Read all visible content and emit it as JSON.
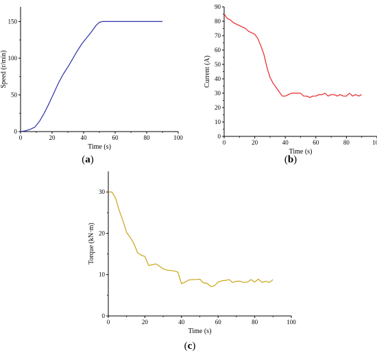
{
  "chart_data": [
    {
      "type": "line",
      "panel": "a",
      "panel_label": "a",
      "xlabel": "Time (s)",
      "ylabel": "Speed (r/min)",
      "xlim": [
        0,
        100
      ],
      "ylim": [
        0,
        170
      ],
      "xticks": [
        0,
        20,
        40,
        60,
        80,
        100
      ],
      "yticks": [
        0,
        50,
        100,
        150
      ],
      "grid": false,
      "color": "#2b2fa8",
      "x": [
        0,
        3,
        6,
        9,
        12,
        15,
        18,
        21,
        24,
        27,
        30,
        33,
        36,
        39,
        42,
        45,
        48,
        50,
        52,
        54,
        56,
        60,
        70,
        80,
        90
      ],
      "y": [
        0,
        1,
        3,
        6,
        14,
        25,
        38,
        52,
        66,
        78,
        88,
        99,
        110,
        120,
        128,
        136,
        145,
        149,
        150,
        150,
        150,
        150,
        150,
        150,
        150
      ]
    },
    {
      "type": "line",
      "panel": "b",
      "panel_label": "b",
      "xlabel": "Time (s)",
      "ylabel": "Current (A)",
      "xlim": [
        0,
        100
      ],
      "ylim": [
        0,
        90
      ],
      "xticks": [
        0,
        20,
        40,
        60,
        80,
        100
      ],
      "yticks": [
        0,
        10,
        20,
        30,
        40,
        50,
        60,
        70,
        80,
        90
      ],
      "grid": false,
      "color": "#e8252a",
      "x": [
        0,
        2,
        4,
        6,
        8,
        10,
        12,
        14,
        16,
        18,
        20,
        22,
        24,
        26,
        28,
        30,
        32,
        34,
        36,
        38,
        40,
        42,
        44,
        46,
        48,
        50,
        52,
        54,
        56,
        58,
        60,
        62,
        64,
        66,
        68,
        70,
        72,
        74,
        76,
        78,
        80,
        82,
        84,
        86,
        88,
        90
      ],
      "y": [
        85,
        82,
        81,
        79,
        78,
        77,
        76,
        75,
        73,
        72,
        71,
        68,
        63,
        57,
        48,
        41,
        37,
        34,
        31,
        28,
        28,
        29,
        30,
        30,
        30,
        30,
        28,
        28,
        27,
        28,
        28,
        29,
        29,
        30,
        28,
        29,
        29,
        28,
        29,
        28,
        28,
        30,
        28,
        29,
        28,
        29
      ]
    },
    {
      "type": "line",
      "panel": "c",
      "panel_label": "c",
      "xlabel": "Time (s)",
      "ylabel": "Torque (kN·m)",
      "xlim": [
        0,
        100
      ],
      "ylim": [
        0,
        35
      ],
      "xticks": [
        0,
        20,
        40,
        60,
        80,
        100
      ],
      "yticks": [
        0,
        10,
        20,
        30
      ],
      "grid": false,
      "color": "#c8a317",
      "x": [
        0,
        2,
        4,
        6,
        8,
        10,
        12,
        14,
        16,
        18,
        20,
        22,
        24,
        26,
        28,
        30,
        32,
        34,
        36,
        38,
        40,
        42,
        44,
        46,
        48,
        50,
        52,
        54,
        56,
        58,
        60,
        62,
        64,
        66,
        68,
        70,
        72,
        74,
        76,
        78,
        80,
        82,
        84,
        86,
        88,
        90
      ],
      "y": [
        30,
        30,
        28.5,
        25.5,
        23,
        20.2,
        19,
        17.5,
        15.3,
        14.7,
        14.4,
        12.2,
        12.4,
        12.6,
        12,
        11.4,
        11.1,
        11,
        10.9,
        10.6,
        7.8,
        8.2,
        8.7,
        8.8,
        8.8,
        8.9,
        8,
        7.9,
        7.1,
        7.3,
        8.2,
        8.5,
        8.6,
        8.8,
        8.1,
        8.4,
        8.4,
        8.1,
        8.2,
        8.8,
        8.2,
        8.9,
        8.1,
        8.4,
        8.1,
        8.8
      ]
    }
  ]
}
